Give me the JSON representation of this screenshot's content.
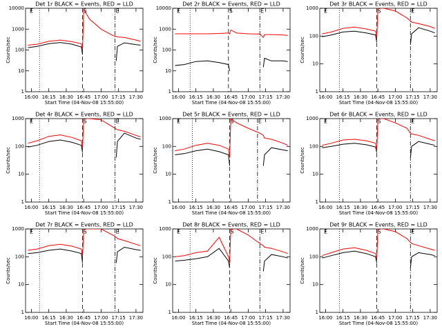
{
  "chart_data": [
    {
      "type": "line",
      "title": "Det 1r BLACK = Events, RED = LLD",
      "xlabel": "Start Time (04-Nov-08 15:55:00)",
      "ylabel": "Counts/sec",
      "x": [
        "15:57",
        "16:05",
        "16:15",
        "16:25",
        "16:35",
        "16:43",
        "16:44",
        "16:45",
        "16:50",
        "17:00",
        "17:10",
        "17:13",
        "17:14",
        "17:20",
        "17:30",
        "17:34"
      ],
      "series": [
        {
          "color": "#000000",
          "values": [
            130,
            150,
            200,
            230,
            190,
            140,
            60,
            null,
            null,
            null,
            null,
            30,
            150,
            220,
            180,
            170
          ]
        },
        {
          "color": "#ff0000",
          "values": [
            170,
            190,
            260,
            300,
            250,
            200,
            100,
            9000,
            3000,
            1000,
            500,
            450,
            420,
            400,
            300,
            260
          ]
        }
      ],
      "xlim": [
        "15:55",
        "17:36"
      ],
      "xticks": [
        "16:00",
        "16:15",
        "16:30",
        "16:45",
        "17:00",
        "17:15",
        "17:30"
      ],
      "ylim": [
        1,
        10000
      ],
      "yticks": [
        1,
        10,
        100,
        1000,
        10000
      ],
      "ylog": true,
      "events": [
        {
          "x": "15:58",
          "line": "none",
          "label": "E"
        },
        {
          "x": "16:07",
          "line": "dotted"
        },
        {
          "x": "16:44",
          "line": "dashed",
          "label": "S"
        },
        {
          "x": "17:12",
          "line": "dashdot",
          "label": "E"
        }
      ]
    },
    {
      "type": "line",
      "title": "Det 2r BLACK = Events, RED = LLD",
      "xlabel": "Start Time (04-Nov-08 15:55:00)",
      "ylabel": "Counts/sec",
      "x": [
        "15:57",
        "16:05",
        "16:15",
        "16:25",
        "16:35",
        "16:43",
        "16:44",
        "16:45",
        "16:50",
        "17:00",
        "17:10",
        "17:13",
        "17:14",
        "17:20",
        "17:30",
        "17:34"
      ],
      "series": [
        {
          "color": "#000000",
          "values": [
            18,
            20,
            28,
            30,
            25,
            20,
            10,
            null,
            null,
            null,
            null,
            15,
            40,
            30,
            30,
            28
          ]
        },
        {
          "color": "#ff0000",
          "values": [
            600,
            600,
            600,
            600,
            620,
            650,
            600,
            900,
            650,
            600,
            580,
            400,
            550,
            550,
            520,
            500
          ]
        }
      ],
      "xlim": [
        "15:55",
        "17:36"
      ],
      "xticks": [
        "16:00",
        "16:15",
        "16:30",
        "16:45",
        "17:00",
        "17:15",
        "17:30"
      ],
      "ylim": [
        1,
        10000
      ],
      "yticks": [
        1,
        10,
        100,
        1000,
        10000
      ],
      "ylog": true,
      "events": [
        {
          "x": "15:58",
          "line": "none",
          "label": "E"
        },
        {
          "x": "16:10",
          "line": "dotted"
        },
        {
          "x": "16:43",
          "line": "dashed",
          "label": "S"
        },
        {
          "x": "17:10",
          "line": "dashdot",
          "label": "E"
        }
      ]
    },
    {
      "type": "line",
      "title": "Det 3r BLACK = Events, RED = LLD",
      "xlabel": "Start Time (04-Nov-08 15:55:00)",
      "ylabel": "Counts/sec",
      "x": [
        "15:57",
        "16:05",
        "16:15",
        "16:25",
        "16:35",
        "16:43",
        "16:44",
        "16:45",
        "16:50",
        "17:00",
        "17:10",
        "17:13",
        "17:14",
        "17:20",
        "17:30",
        "17:34"
      ],
      "series": [
        {
          "color": "#000000",
          "values": [
            95,
            110,
            140,
            150,
            130,
            110,
            60,
            null,
            null,
            null,
            null,
            50,
            120,
            200,
            150,
            130
          ]
        },
        {
          "color": "#ff0000",
          "values": [
            120,
            140,
            190,
            210,
            180,
            150,
            80,
            1000,
            1000,
            800,
            450,
            350,
            320,
            280,
            220,
            190
          ]
        }
      ],
      "xlim": [
        "15:55",
        "17:36"
      ],
      "xticks": [
        "16:00",
        "16:15",
        "16:30",
        "16:45",
        "17:00",
        "17:15",
        "17:30"
      ],
      "ylim": [
        1,
        1000
      ],
      "yticks": [
        1,
        10,
        100,
        1000
      ],
      "ylog": true,
      "events": [
        {
          "x": "15:58",
          "line": "none",
          "label": "E"
        },
        {
          "x": "16:12",
          "line": "dotted"
        },
        {
          "x": "16:44",
          "line": "dashed",
          "label": "S"
        },
        {
          "x": "17:13",
          "line": "dashdot",
          "label": "E"
        }
      ]
    },
    {
      "type": "line",
      "title": "Det 4r BLACK = Events, RED = LLD",
      "xlabel": "Start Time (04-Nov-08 15:55:00)",
      "ylabel": "Counts/sec",
      "x": [
        "15:57",
        "16:05",
        "16:15",
        "16:25",
        "16:35",
        "16:43",
        "16:44",
        "16:45",
        "16:50",
        "17:00",
        "17:10",
        "17:13",
        "17:14",
        "17:20",
        "17:30",
        "17:34"
      ],
      "series": [
        {
          "color": "#000000",
          "values": [
            95,
            110,
            150,
            170,
            140,
            110,
            60,
            null,
            null,
            null,
            null,
            40,
            150,
            300,
            200,
            180
          ]
        },
        {
          "color": "#ff0000",
          "values": [
            130,
            160,
            230,
            260,
            210,
            160,
            80,
            1000,
            1000,
            900,
            500,
            420,
            400,
            350,
            250,
            220
          ]
        }
      ],
      "xlim": [
        "15:55",
        "17:36"
      ],
      "xticks": [
        "16:00",
        "16:15",
        "16:30",
        "16:45",
        "17:00",
        "17:15",
        "17:30"
      ],
      "ylim": [
        1,
        1000
      ],
      "yticks": [
        1,
        10,
        100,
        1000
      ],
      "ylog": true,
      "events": [
        {
          "x": "15:58",
          "line": "none",
          "label": "E"
        },
        {
          "x": "16:07",
          "line": "dotted"
        },
        {
          "x": "16:44",
          "line": "dashed",
          "label": "S"
        },
        {
          "x": "17:12",
          "line": "dashdot",
          "label": "E"
        }
      ]
    },
    {
      "type": "line",
      "title": "Det 5r BLACK = Events, RED = LLD",
      "xlabel": "Start Time (04-Nov-08 15:55:00)",
      "ylabel": "Counts/sec",
      "x": [
        "15:57",
        "16:05",
        "16:15",
        "16:25",
        "16:35",
        "16:43",
        "16:44",
        "16:45",
        "16:50",
        "17:00",
        "17:10",
        "17:13",
        "17:14",
        "17:20",
        "17:30",
        "17:34"
      ],
      "series": [
        {
          "color": "#000000",
          "values": [
            50,
            55,
            70,
            80,
            65,
            50,
            20,
            null,
            null,
            null,
            null,
            20,
            50,
            90,
            75,
            70
          ]
        },
        {
          "color": "#ff0000",
          "values": [
            70,
            80,
            110,
            130,
            110,
            80,
            40,
            1000,
            700,
            450,
            300,
            250,
            200,
            180,
            130,
            110
          ]
        }
      ],
      "xlim": [
        "15:55",
        "17:36"
      ],
      "xticks": [
        "16:00",
        "16:15",
        "16:30",
        "16:45",
        "17:00",
        "17:15",
        "17:30"
      ],
      "ylim": [
        1,
        1000
      ],
      "yticks": [
        1,
        10,
        100,
        1000
      ],
      "ylog": true,
      "events": [
        {
          "x": "15:58",
          "line": "none",
          "label": "E"
        },
        {
          "x": "16:12",
          "line": "dotted"
        },
        {
          "x": "16:44",
          "line": "dashed",
          "label": "S"
        },
        {
          "x": "17:08",
          "line": "dashdot",
          "label": "E"
        }
      ]
    },
    {
      "type": "line",
      "title": "Det 6r BLACK = Events, RED = LLD",
      "xlabel": "Start Time (04-Nov-08 15:55:00)",
      "ylabel": "Counts/sec",
      "x": [
        "15:57",
        "16:05",
        "16:15",
        "16:25",
        "16:35",
        "16:43",
        "16:44",
        "16:45",
        "16:50",
        "17:00",
        "17:10",
        "17:13",
        "17:14",
        "17:20",
        "17:30",
        "17:34"
      ],
      "series": [
        {
          "color": "#000000",
          "values": [
            90,
            100,
            120,
            130,
            115,
            95,
            60,
            null,
            null,
            null,
            null,
            40,
            100,
            150,
            120,
            110
          ]
        },
        {
          "color": "#ff0000",
          "values": [
            110,
            130,
            170,
            180,
            160,
            130,
            70,
            1000,
            1000,
            700,
            450,
            300,
            280,
            250,
            180,
            160
          ]
        }
      ],
      "xlim": [
        "15:55",
        "17:36"
      ],
      "xticks": [
        "16:00",
        "16:15",
        "16:30",
        "16:45",
        "17:00",
        "17:15",
        "17:30"
      ],
      "ylim": [
        1,
        1000
      ],
      "yticks": [
        1,
        10,
        100,
        1000
      ],
      "ylog": true,
      "events": [
        {
          "x": "15:58",
          "line": "none",
          "label": "E"
        },
        {
          "x": "16:12",
          "line": "dotted"
        },
        {
          "x": "16:44",
          "line": "dashed",
          "label": "S"
        },
        {
          "x": "17:13",
          "line": "dashdot",
          "label": "E"
        }
      ]
    },
    {
      "type": "line",
      "title": "Det 7r BLACK = Events, RED = LLD",
      "xlabel": "Start Time (04-Nov-08 15:55:00)",
      "ylabel": "Counts/sec",
      "x": [
        "15:57",
        "16:05",
        "16:15",
        "16:25",
        "16:35",
        "16:43",
        "16:44",
        "16:45",
        "16:50",
        "17:00",
        "17:10",
        "17:13",
        "17:14",
        "17:20",
        "17:30",
        "17:34"
      ],
      "series": [
        {
          "color": "#000000",
          "values": [
            130,
            140,
            170,
            190,
            160,
            130,
            60,
            null,
            null,
            null,
            null,
            60,
            150,
            220,
            180,
            170
          ]
        },
        {
          "color": "#ff0000",
          "values": [
            170,
            190,
            250,
            280,
            240,
            190,
            100,
            1000,
            1000,
            1000,
            600,
            500,
            450,
            380,
            280,
            250
          ]
        }
      ],
      "xlim": [
        "15:55",
        "17:36"
      ],
      "xticks": [
        "16:00",
        "16:15",
        "16:30",
        "16:45",
        "17:00",
        "17:15",
        "17:30"
      ],
      "ylim": [
        1,
        1000
      ],
      "yticks": [
        1,
        10,
        100,
        1000
      ],
      "ylog": true,
      "events": [
        {
          "x": "15:58",
          "line": "none",
          "label": "E"
        },
        {
          "x": "16:07",
          "line": "dotted"
        },
        {
          "x": "16:44",
          "line": "dashed",
          "label": "S"
        },
        {
          "x": "17:12",
          "line": "dashdot",
          "label": "E"
        }
      ]
    },
    {
      "type": "line",
      "title": "Det 8r BLACK = Events, RED = LLD",
      "xlabel": "Start Time (04-Nov-08 15:55:00)",
      "ylabel": "Counts/sec",
      "x": [
        "15:57",
        "16:05",
        "16:15",
        "16:25",
        "16:35",
        "16:43",
        "16:44",
        "16:45",
        "16:50",
        "17:00",
        "17:10",
        "17:13",
        "17:14",
        "17:20",
        "17:30",
        "17:34"
      ],
      "series": [
        {
          "color": "#000000",
          "values": [
            70,
            75,
            85,
            100,
            200,
            70,
            40,
            null,
            null,
            null,
            null,
            30,
            70,
            120,
            100,
            90
          ]
        },
        {
          "color": "#ff0000",
          "values": [
            100,
            110,
            140,
            160,
            500,
            100,
            60,
            1000,
            1000,
            600,
            300,
            250,
            220,
            200,
            150,
            130
          ]
        }
      ],
      "xlim": [
        "15:55",
        "17:36"
      ],
      "xticks": [
        "16:00",
        "16:15",
        "16:30",
        "16:45",
        "17:00",
        "17:15",
        "17:30"
      ],
      "ylim": [
        1,
        1000
      ],
      "yticks": [
        1,
        10,
        100,
        1000
      ],
      "ylog": true,
      "events": [
        {
          "x": "15:58",
          "line": "none",
          "label": "E"
        },
        {
          "x": "16:10",
          "line": "dotted"
        },
        {
          "x": "16:44",
          "line": "dashed",
          "label": "S"
        },
        {
          "x": "17:10",
          "line": "dashdot",
          "label": "E"
        }
      ]
    },
    {
      "type": "line",
      "title": "Det 9r BLACK = Events, RED = LLD",
      "xlabel": "Start Time (04-Nov-08 15:55:00)",
      "ylabel": "Counts/sec",
      "x": [
        "15:57",
        "16:05",
        "16:15",
        "16:25",
        "16:35",
        "16:43",
        "16:44",
        "16:45",
        "16:50",
        "17:00",
        "17:10",
        "17:13",
        "17:14",
        "17:20",
        "17:30",
        "17:34"
      ],
      "series": [
        {
          "color": "#000000",
          "values": [
            90,
            110,
            140,
            160,
            130,
            100,
            60,
            null,
            null,
            null,
            null,
            40,
            100,
            140,
            120,
            110
          ]
        },
        {
          "color": "#ff0000",
          "values": [
            110,
            140,
            190,
            210,
            170,
            130,
            80,
            1000,
            1000,
            800,
            450,
            330,
            300,
            250,
            190,
            170
          ]
        }
      ],
      "xlim": [
        "15:55",
        "17:36"
      ],
      "xticks": [
        "16:00",
        "16:15",
        "16:30",
        "16:45",
        "17:00",
        "17:15",
        "17:30"
      ],
      "ylim": [
        1,
        1000
      ],
      "yticks": [
        1,
        10,
        100,
        1000
      ],
      "ylog": true,
      "events": [
        {
          "x": "15:58",
          "line": "none",
          "label": "E"
        },
        {
          "x": "16:12",
          "line": "dotted"
        },
        {
          "x": "16:44",
          "line": "dashed",
          "label": "S"
        },
        {
          "x": "17:13",
          "line": "dashdot",
          "label": "E"
        }
      ]
    }
  ]
}
